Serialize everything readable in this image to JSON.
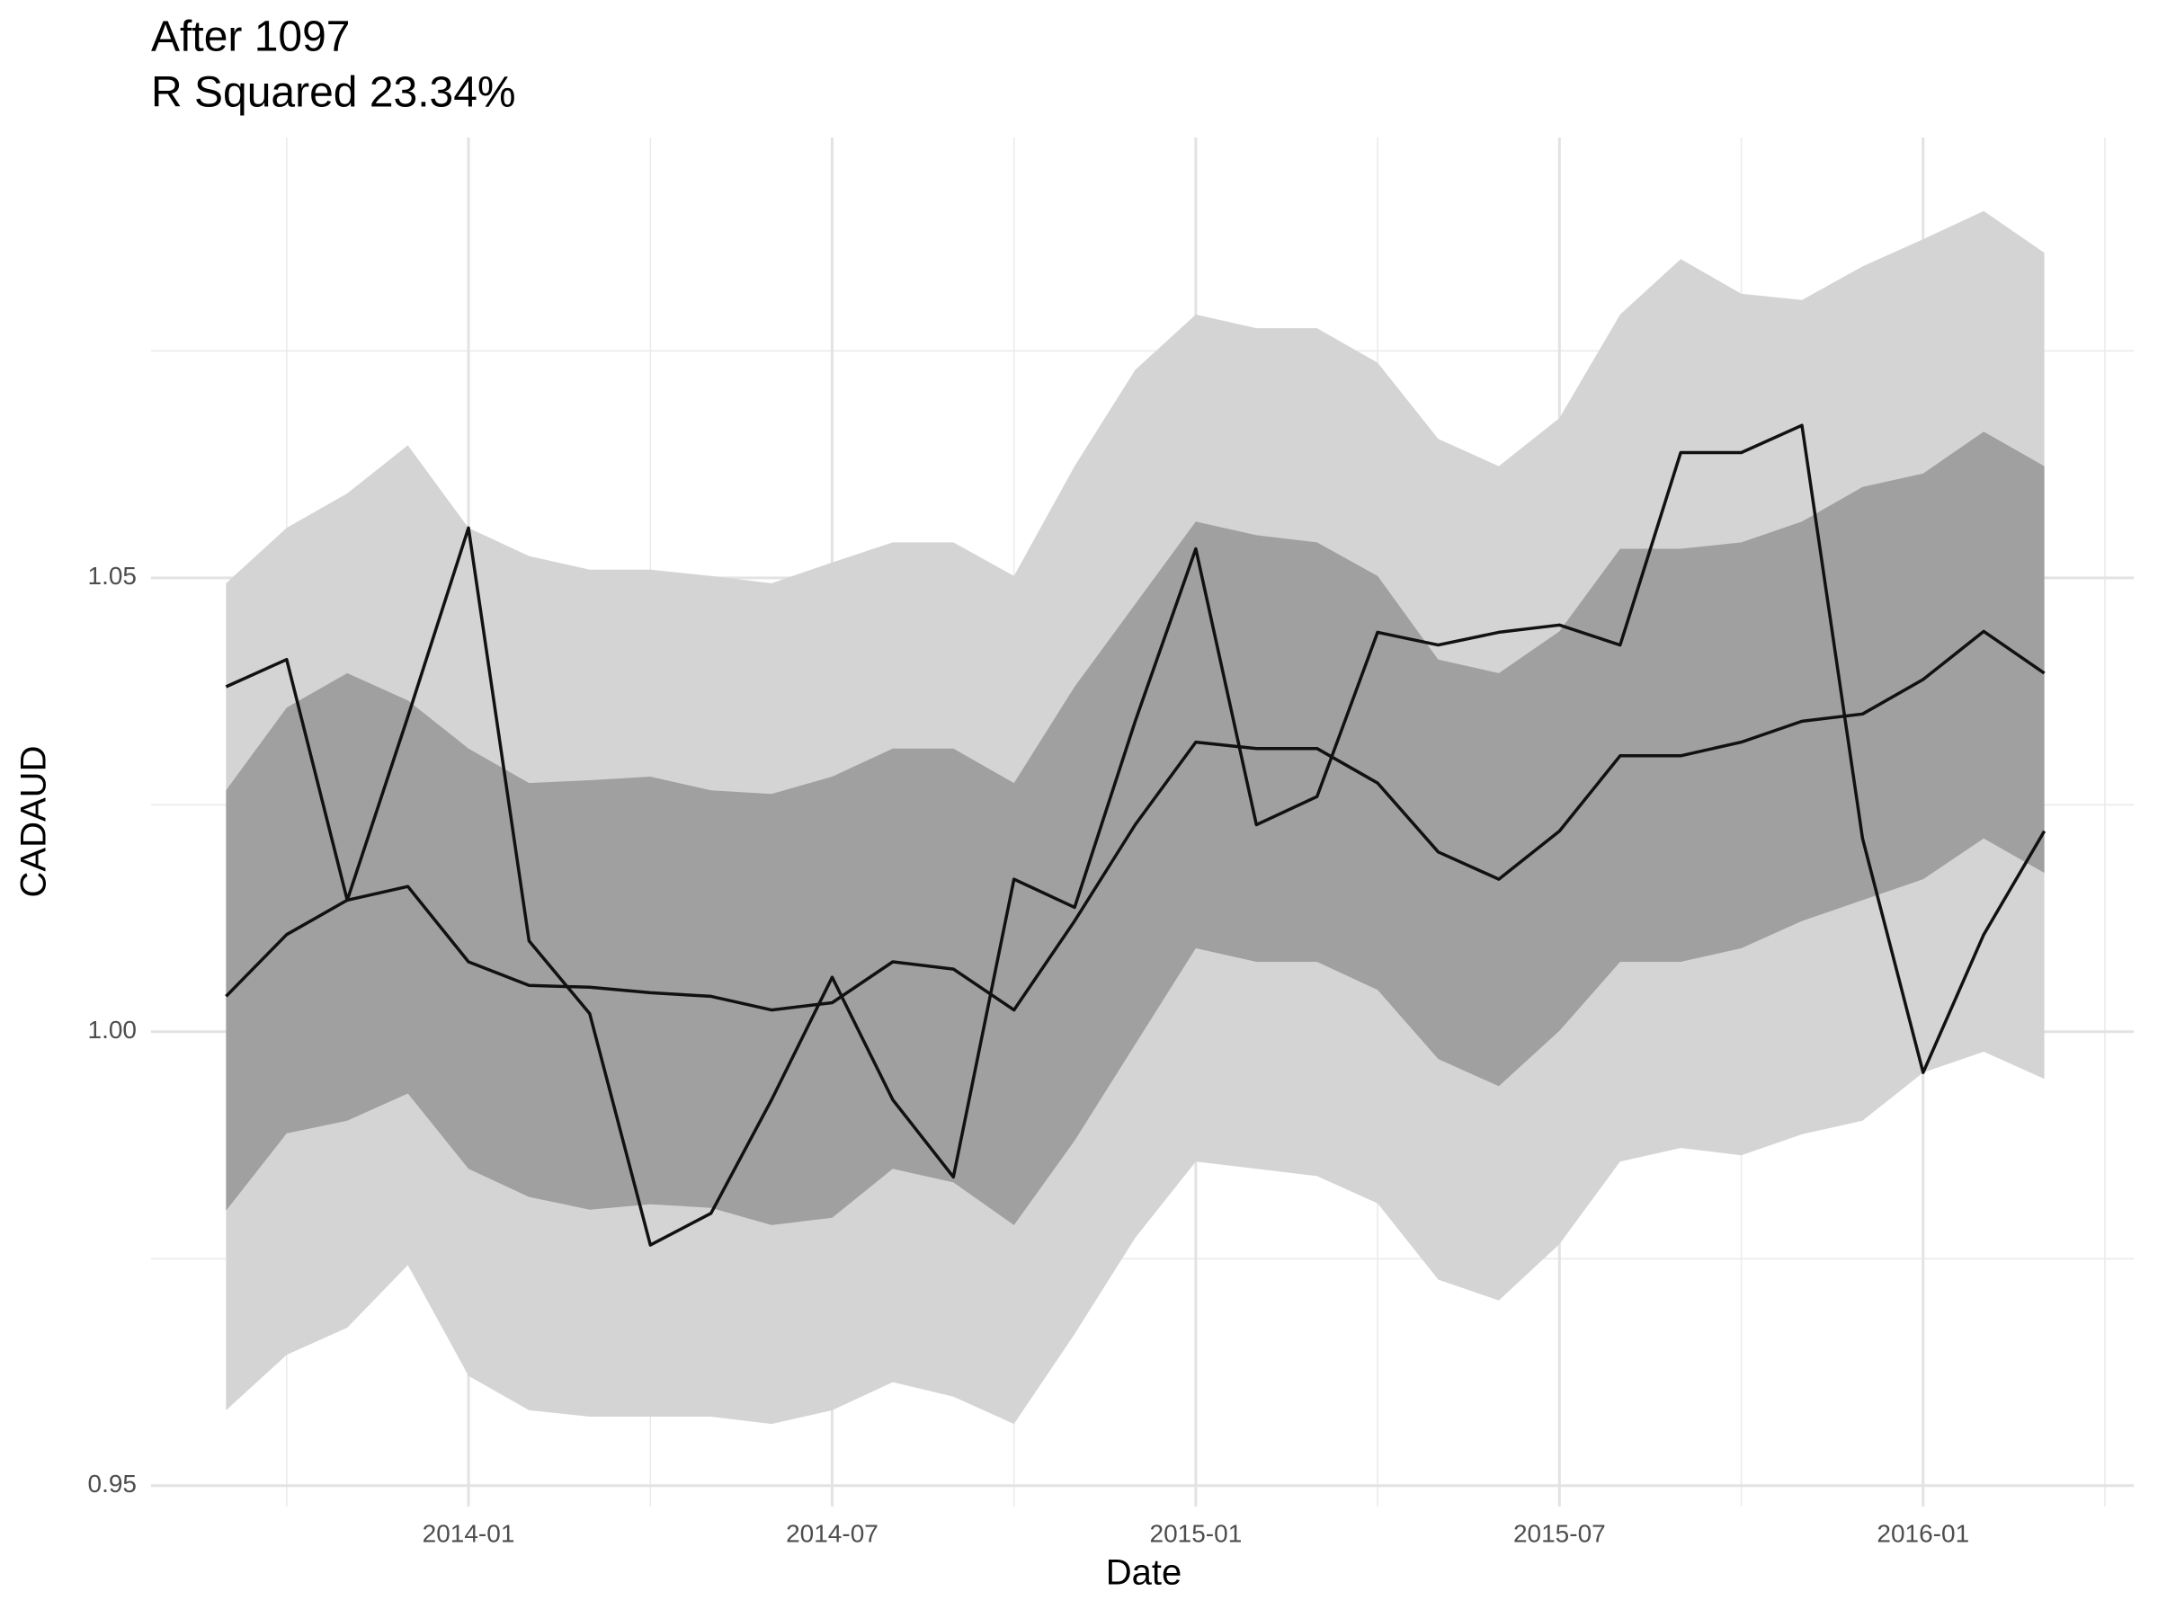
{
  "chart_data": {
    "type": "line",
    "title": "After 1097",
    "subtitle": "R Squared 23.34%",
    "x_label": "Date",
    "y_label": "CADAUD",
    "x": [
      "2013-09",
      "2013-10",
      "2013-11",
      "2013-12",
      "2014-01",
      "2014-02",
      "2014-03",
      "2014-04",
      "2014-05",
      "2014-06",
      "2014-07",
      "2014-08",
      "2014-09",
      "2014-10",
      "2014-11",
      "2014-12",
      "2015-01",
      "2015-02",
      "2015-03",
      "2015-04",
      "2015-05",
      "2015-06",
      "2015-07",
      "2015-08",
      "2015-09",
      "2015-10",
      "2015-11",
      "2015-12",
      "2016-01",
      "2016-02",
      "2016-03"
    ],
    "xlim": [
      "2013-08",
      "2016-04"
    ],
    "xticks": [
      "2014-01",
      "2014-07",
      "2015-01",
      "2015-07",
      "2016-01"
    ],
    "xminor": [
      "2013-10",
      "2014-04",
      "2014-10",
      "2015-04",
      "2015-10",
      "2016-04"
    ],
    "ylim": [
      0.9477,
      1.0985
    ],
    "yticks": [
      {
        "value": 0.95,
        "label": "0.95"
      },
      {
        "value": 1.0,
        "label": "1.00"
      },
      {
        "value": 1.05,
        "label": "1.05"
      }
    ],
    "yminor": [
      0.975,
      1.025,
      1.075
    ],
    "grid": true,
    "bands": [
      {
        "color": "#d4d4d4",
        "upper": [
          1.0494,
          1.0555,
          1.0593,
          1.0646,
          1.0555,
          1.0524,
          1.0509,
          1.0509,
          1.0502,
          1.0494,
          1.0517,
          1.0539,
          1.0539,
          1.0502,
          1.0623,
          1.0729,
          1.079,
          1.0775,
          1.0775,
          1.0737,
          1.0653,
          1.0623,
          1.0676,
          1.079,
          1.0851,
          1.0813,
          1.0806,
          1.0843,
          1.0873,
          1.0904,
          1.0858
        ],
        "lower": [
          0.9583,
          0.9644,
          0.9674,
          0.9743,
          0.9621,
          0.9583,
          0.9576,
          0.9576,
          0.9576,
          0.9568,
          0.9583,
          0.9614,
          0.9598,
          0.9568,
          0.9667,
          0.9773,
          0.9857,
          0.9849,
          0.9841,
          0.9811,
          0.9727,
          0.9704,
          0.9766,
          0.9857,
          0.9872,
          0.9864,
          0.9887,
          0.9902,
          0.9955,
          0.9978,
          0.9948
        ]
      },
      {
        "color": "#a0a0a0",
        "upper": [
          1.0266,
          1.0357,
          1.0395,
          1.0365,
          1.0312,
          1.0274,
          1.0277,
          1.0281,
          1.0266,
          1.0262,
          1.0281,
          1.0312,
          1.0312,
          1.0274,
          1.038,
          1.0471,
          1.0562,
          1.0547,
          1.0539,
          1.0502,
          1.041,
          1.0395,
          1.0441,
          1.0532,
          1.0532,
          1.0539,
          1.0562,
          1.06,
          1.0615,
          1.0661,
          1.0623
        ],
        "lower": [
          0.9803,
          0.9888,
          0.9902,
          0.9932,
          0.9849,
          0.9818,
          0.9804,
          0.981,
          0.9806,
          0.9787,
          0.9795,
          0.9849,
          0.9834,
          0.9787,
          0.988,
          0.9986,
          1.0092,
          1.0077,
          1.0077,
          1.0046,
          0.997,
          0.994,
          1.0001,
          1.0077,
          1.0077,
          1.0092,
          1.0122,
          1.0145,
          1.0168,
          1.0213,
          1.0175
        ]
      }
    ],
    "series": [
      {
        "color": "#111111",
        "values": [
          1.0039,
          1.0107,
          1.0145,
          1.016,
          1.0077,
          1.0051,
          1.0049,
          1.0043,
          1.0039,
          1.0024,
          1.0032,
          1.0077,
          1.0069,
          1.0024,
          1.0122,
          1.0228,
          1.0319,
          1.0312,
          1.0312,
          1.0274,
          1.0198,
          1.0168,
          1.0221,
          1.0304,
          1.0304,
          1.0319,
          1.0342,
          1.035,
          1.0388,
          1.0441,
          1.0395
        ]
      },
      {
        "color": "#111111",
        "values": [
          1.038,
          1.041,
          1.0145,
          1.0347,
          1.0555,
          1.01,
          1.002,
          0.9765,
          0.98,
          0.9925,
          1.006,
          0.9925,
          0.984,
          1.0168,
          1.0137,
          1.0342,
          1.0532,
          1.0228,
          1.0259,
          1.044,
          1.0426,
          1.044,
          1.0448,
          1.0426,
          1.0638,
          1.0638,
          1.0668,
          1.0213,
          0.9955,
          1.0107,
          1.0221
        ]
      }
    ]
  }
}
